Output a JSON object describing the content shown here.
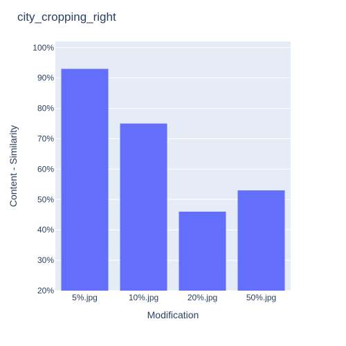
{
  "chart_data": {
    "type": "bar",
    "title": "city_cropping_right",
    "xlabel": "Modification",
    "ylabel": "Content - Similarity",
    "categories": [
      "5%.jpg",
      "10%.jpg",
      "20%.jpg",
      "50%.jpg"
    ],
    "values": [
      0.93,
      0.75,
      0.46,
      0.53
    ],
    "ylim": [
      0.2,
      1.02
    ],
    "yticks": [
      0.2,
      0.3,
      0.4,
      0.5,
      0.6,
      0.7,
      0.8,
      0.9,
      1.0
    ],
    "ytick_format": "percent",
    "grid": true,
    "colors": {
      "bar": "#636efa",
      "plot_bg": "#e5ecf6",
      "grid": "#ffffff",
      "text": "#2a3f5f"
    }
  }
}
